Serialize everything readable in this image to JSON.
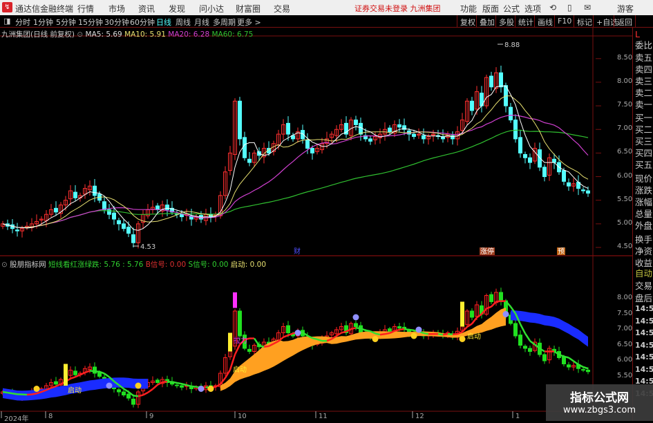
{
  "titlebar": {
    "app": "通达信金融终端",
    "menus": [
      "行情",
      "市场",
      "资讯",
      "发现",
      "问小达",
      "财富圈",
      "交易"
    ],
    "notice": "证券交易未登录 九洲集团",
    "right_menus": [
      "功能",
      "版面",
      "公式",
      "选项"
    ],
    "user": "游客"
  },
  "toolbar": {
    "periods": [
      "分时",
      "1分钟",
      "5分钟",
      "15分钟",
      "30分钟",
      "60分钟",
      "日线",
      "周线",
      "月线",
      "多周期",
      "更多 >"
    ],
    "active_period": "日线",
    "buttons": [
      "复权",
      "叠加",
      "多股",
      "统计",
      "画线",
      "F10",
      "标记",
      "+自选",
      "返回"
    ]
  },
  "main_info": {
    "stock": "九洲集团(日线 前复权)",
    "ma5": "MA5: 5.69",
    "ma10": "MA10: 5.91",
    "ma20": "MA20: 6.28",
    "ma60": "MA60: 6.75"
  },
  "indicator_info": {
    "name": "股朋指标网",
    "line": "短线看红涨绿跌: 5.76 : 5.76",
    "b": "B信号: 0.00",
    "s": "S信号: 0.00",
    "start": "启动: 0.00"
  },
  "colors": {
    "up": "#ff3030",
    "down": "#54ffff",
    "ma5": "#ffffff",
    "ma10": "#e8e070",
    "ma20": "#d040d0",
    "ma60": "#30c030",
    "band_blue": "#1a2cff",
    "band_orange": "#ffa020"
  },
  "annotations": {
    "high": "8.88",
    "low": "4.53",
    "cai": "财",
    "zhangting": "涨停",
    "yu": "预",
    "qidong": "启动",
    "lali": "拉力"
  },
  "price_axis": [
    "8.50",
    "8.00",
    "7.50",
    "7.00",
    "6.50",
    "6.00",
    "5.50",
    "5.00",
    "4.50"
  ],
  "ind_axis": [
    "8.00",
    "7.50",
    "7.00",
    "6.50",
    "6.00",
    "5.50"
  ],
  "date_axis": [
    "2024年",
    "8",
    "9",
    "10",
    "11",
    "12",
    "1"
  ],
  "right_panel": {
    "top": "L",
    "items": [
      "委比",
      "卖五",
      "卖四",
      "卖三",
      "卖二",
      "卖一",
      "买一",
      "买二",
      "买三",
      "买四",
      "买五",
      "现价",
      "涨跌",
      "涨幅",
      "总量",
      "外盘",
      "换手",
      "净资",
      "收益"
    ],
    "auto": "自动",
    "trade": "交易",
    "after": "盘后",
    "times": [
      "14:56",
      "14:56",
      "14:56",
      "14:56",
      "14:56",
      "14:56",
      "14:56",
      "14:56"
    ]
  },
  "watermark": {
    "title": "指标公式网",
    "url": "www.zbgs3.com"
  },
  "chart_data": {
    "type": "candlestick",
    "ylim": [
      4.4,
      8.9
    ],
    "closes": [
      5.0,
      4.95,
      4.9,
      4.85,
      4.9,
      4.95,
      5.0,
      5.05,
      5.1,
      5.2,
      5.3,
      5.25,
      5.4,
      5.5,
      5.7,
      5.55,
      5.6,
      5.75,
      5.8,
      5.6,
      5.5,
      5.3,
      5.2,
      5.1,
      5.0,
      4.9,
      4.8,
      4.6,
      5.0,
      5.2,
      5.3,
      5.35,
      5.3,
      5.4,
      5.3,
      5.25,
      5.2,
      5.15,
      5.2,
      5.1,
      5.15,
      5.1,
      5.2,
      5.15,
      5.2,
      5.6,
      6.1,
      6.5,
      7.6,
      6.8,
      6.4,
      6.3,
      6.5,
      6.45,
      6.6,
      6.5,
      6.7,
      6.9,
      7.1,
      6.9,
      6.8,
      6.95,
      6.8,
      6.6,
      6.5,
      6.6,
      6.7,
      6.8,
      6.9,
      7.0,
      7.1,
      6.9,
      7.2,
      7.1,
      6.9,
      6.8,
      6.75,
      6.85,
      6.9,
      7.0,
      6.95,
      7.1,
      7.05,
      7.0,
      6.9,
      6.85,
      6.9,
      6.8,
      6.85,
      6.9,
      6.85,
      6.8,
      6.9,
      6.8,
      6.95,
      7.2,
      7.6,
      7.4,
      7.8,
      7.5,
      8.1,
      7.9,
      8.2,
      7.9,
      7.5,
      7.2,
      6.8,
      6.5,
      6.4,
      6.3,
      6.6,
      6.2,
      6.0,
      6.4,
      6.3,
      6.1,
      5.9,
      5.8,
      5.85,
      5.75,
      5.7,
      5.65
    ]
  }
}
